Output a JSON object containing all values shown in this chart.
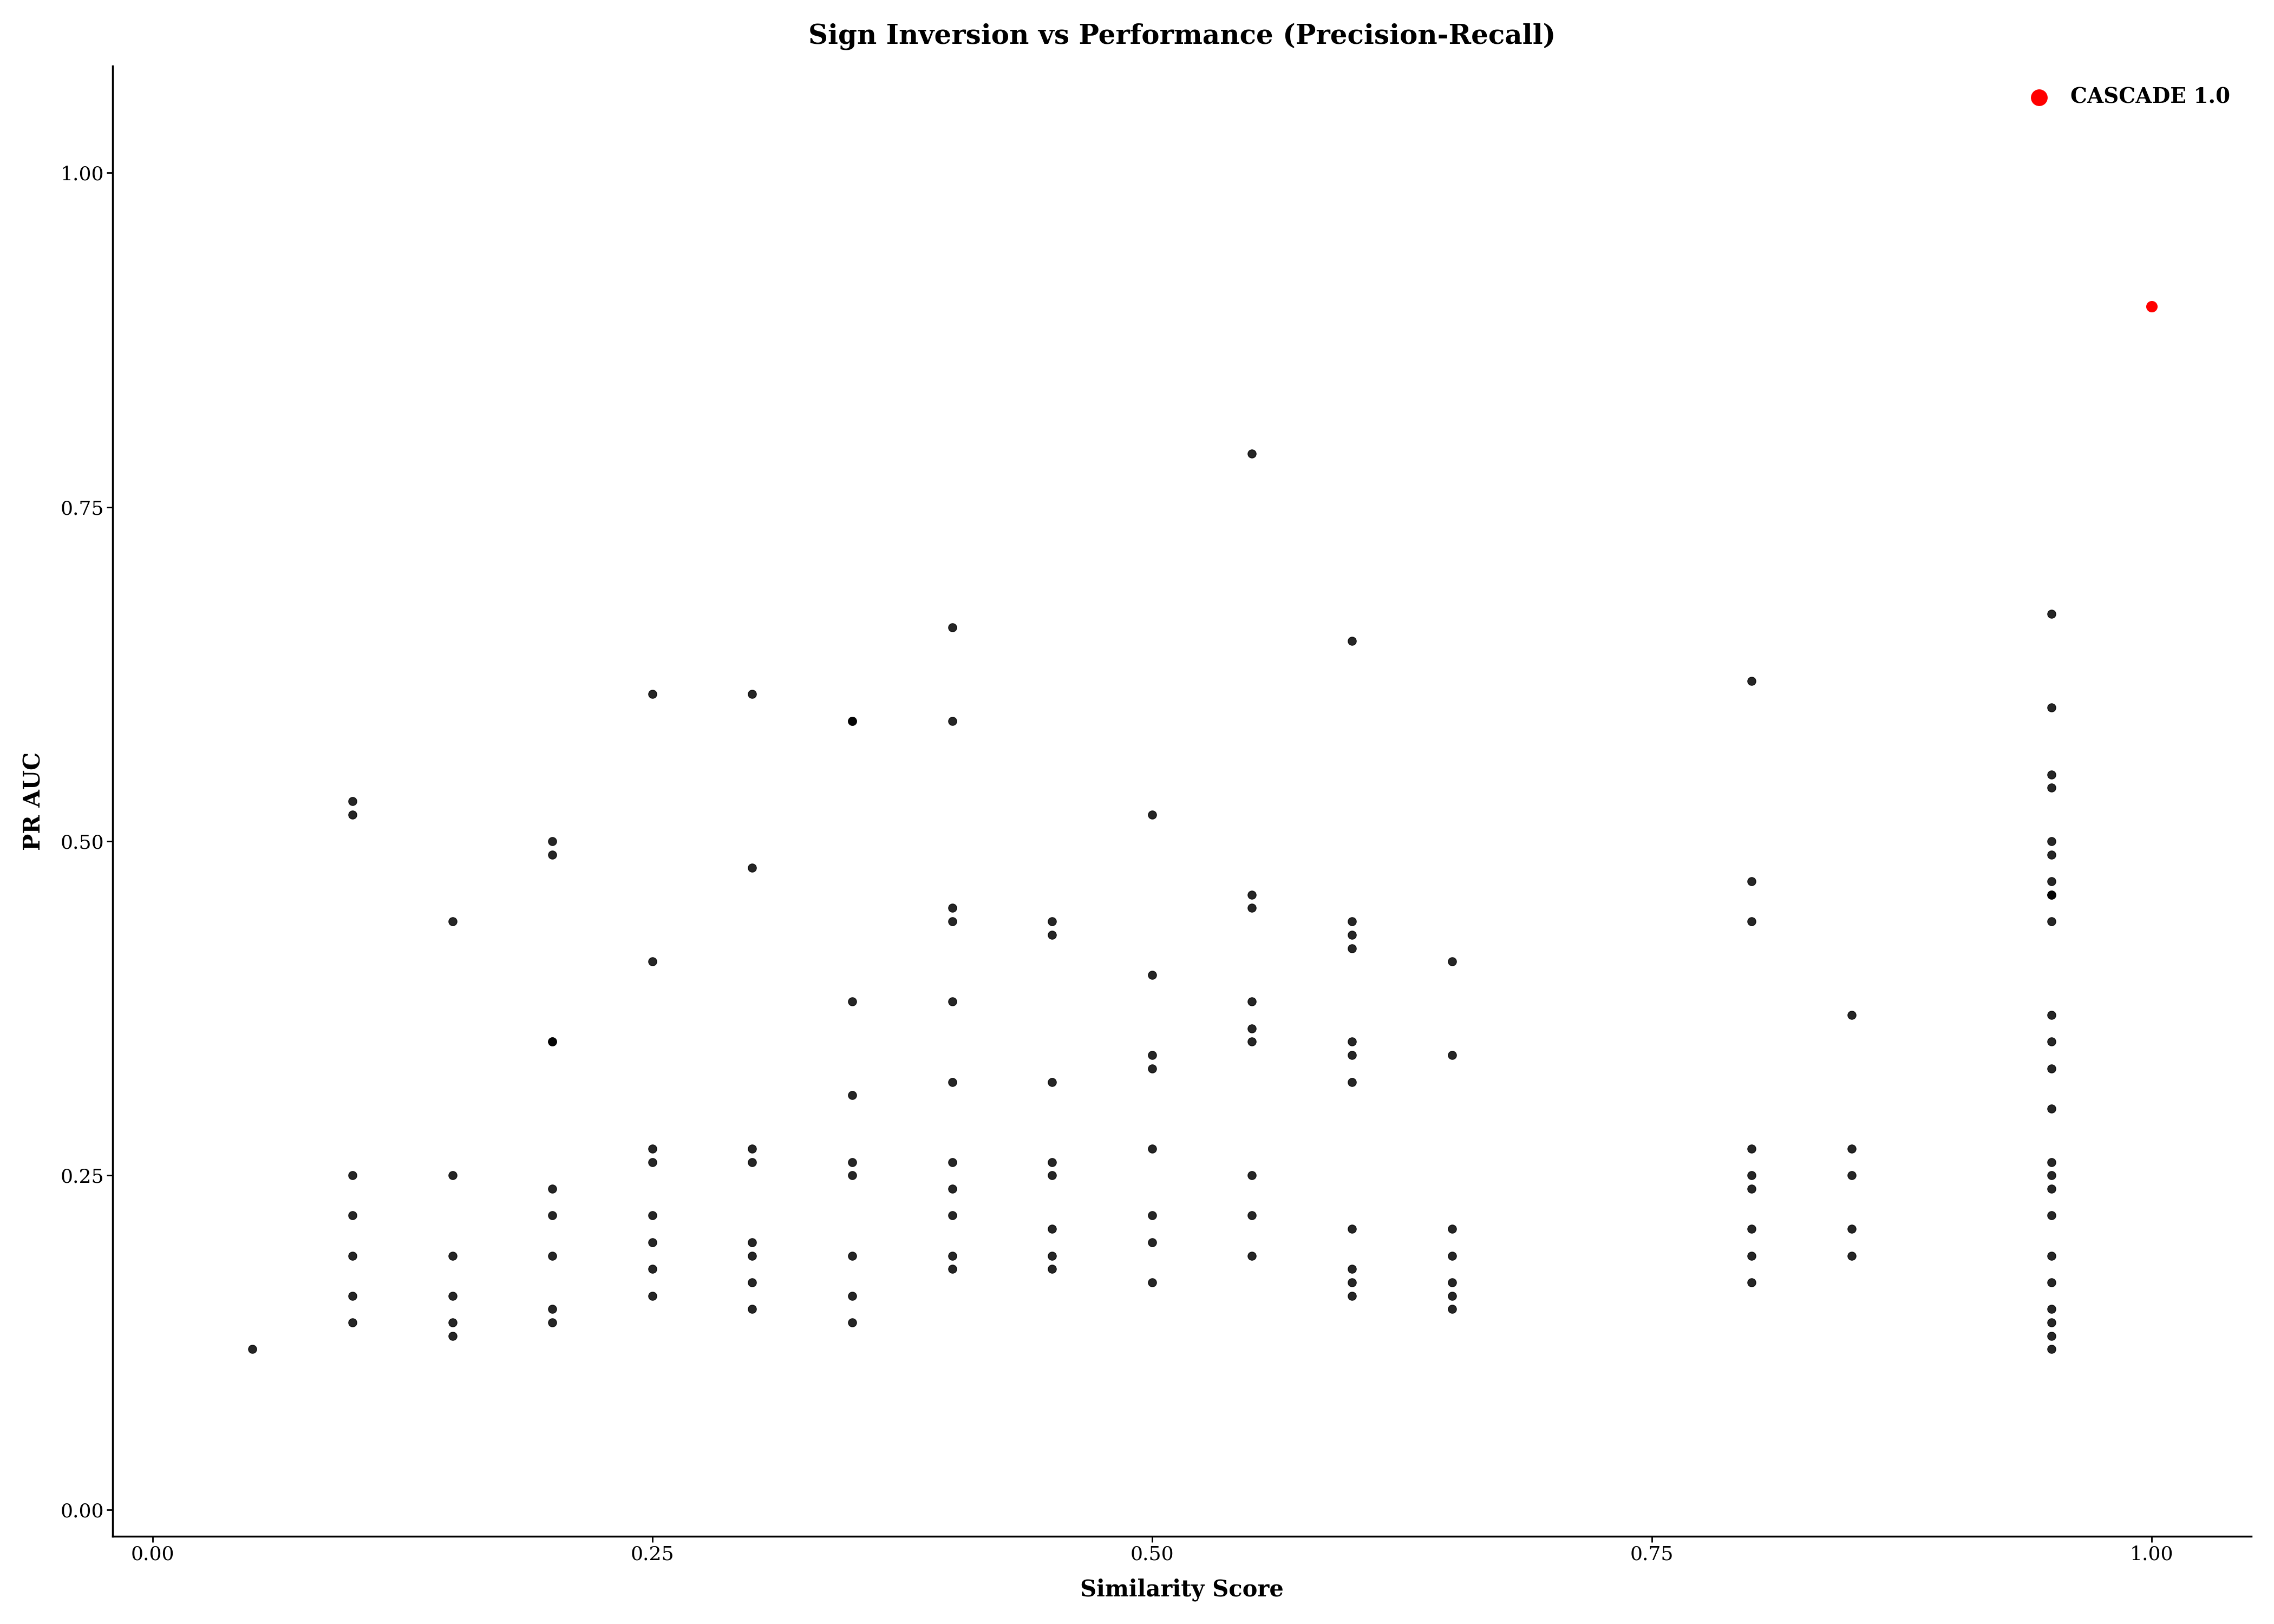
{
  "title": "Sign Inversion vs Performance (Precision-Recall)",
  "xlabel": "Similarity Score",
  "ylabel": "PR AUC",
  "xlim": [
    -0.02,
    1.05
  ],
  "ylim": [
    -0.02,
    1.08
  ],
  "xticks": [
    0.0,
    0.25,
    0.5,
    0.75,
    1.0
  ],
  "yticks": [
    0.0,
    0.25,
    0.5,
    0.75,
    1.0
  ],
  "background_color": "#ffffff",
  "title_fontsize": 36,
  "axis_label_fontsize": 30,
  "tick_fontsize": 26,
  "legend_fontsize": 28,
  "scatter_black": [
    [
      0.05,
      0.12
    ],
    [
      0.1,
      0.52
    ],
    [
      0.1,
      0.53
    ],
    [
      0.1,
      0.25
    ],
    [
      0.1,
      0.22
    ],
    [
      0.1,
      0.19
    ],
    [
      0.1,
      0.16
    ],
    [
      0.1,
      0.14
    ],
    [
      0.15,
      0.44
    ],
    [
      0.15,
      0.25
    ],
    [
      0.15,
      0.19
    ],
    [
      0.15,
      0.16
    ],
    [
      0.15,
      0.14
    ],
    [
      0.15,
      0.13
    ],
    [
      0.2,
      0.5
    ],
    [
      0.2,
      0.49
    ],
    [
      0.2,
      0.35
    ],
    [
      0.2,
      0.35
    ],
    [
      0.2,
      0.24
    ],
    [
      0.2,
      0.22
    ],
    [
      0.2,
      0.19
    ],
    [
      0.2,
      0.15
    ],
    [
      0.2,
      0.14
    ],
    [
      0.25,
      0.61
    ],
    [
      0.25,
      0.41
    ],
    [
      0.25,
      0.27
    ],
    [
      0.25,
      0.26
    ],
    [
      0.25,
      0.22
    ],
    [
      0.25,
      0.2
    ],
    [
      0.25,
      0.18
    ],
    [
      0.25,
      0.16
    ],
    [
      0.3,
      0.61
    ],
    [
      0.3,
      0.48
    ],
    [
      0.3,
      0.27
    ],
    [
      0.3,
      0.26
    ],
    [
      0.3,
      0.2
    ],
    [
      0.3,
      0.19
    ],
    [
      0.3,
      0.17
    ],
    [
      0.3,
      0.15
    ],
    [
      0.35,
      0.59
    ],
    [
      0.35,
      0.59
    ],
    [
      0.35,
      0.38
    ],
    [
      0.35,
      0.31
    ],
    [
      0.35,
      0.26
    ],
    [
      0.35,
      0.25
    ],
    [
      0.35,
      0.19
    ],
    [
      0.35,
      0.16
    ],
    [
      0.35,
      0.14
    ],
    [
      0.4,
      0.66
    ],
    [
      0.4,
      0.59
    ],
    [
      0.4,
      0.45
    ],
    [
      0.4,
      0.44
    ],
    [
      0.4,
      0.38
    ],
    [
      0.4,
      0.32
    ],
    [
      0.4,
      0.26
    ],
    [
      0.4,
      0.24
    ],
    [
      0.4,
      0.22
    ],
    [
      0.4,
      0.19
    ],
    [
      0.4,
      0.18
    ],
    [
      0.45,
      0.44
    ],
    [
      0.45,
      0.43
    ],
    [
      0.45,
      0.32
    ],
    [
      0.45,
      0.26
    ],
    [
      0.45,
      0.25
    ],
    [
      0.45,
      0.21
    ],
    [
      0.45,
      0.19
    ],
    [
      0.45,
      0.18
    ],
    [
      0.5,
      0.52
    ],
    [
      0.5,
      0.4
    ],
    [
      0.5,
      0.34
    ],
    [
      0.5,
      0.33
    ],
    [
      0.5,
      0.27
    ],
    [
      0.5,
      0.22
    ],
    [
      0.5,
      0.2
    ],
    [
      0.5,
      0.17
    ],
    [
      0.55,
      0.79
    ],
    [
      0.55,
      0.46
    ],
    [
      0.55,
      0.45
    ],
    [
      0.55,
      0.38
    ],
    [
      0.55,
      0.36
    ],
    [
      0.55,
      0.35
    ],
    [
      0.55,
      0.25
    ],
    [
      0.55,
      0.22
    ],
    [
      0.55,
      0.19
    ],
    [
      0.6,
      0.65
    ],
    [
      0.6,
      0.44
    ],
    [
      0.6,
      0.43
    ],
    [
      0.6,
      0.42
    ],
    [
      0.6,
      0.35
    ],
    [
      0.6,
      0.34
    ],
    [
      0.6,
      0.32
    ],
    [
      0.6,
      0.21
    ],
    [
      0.6,
      0.18
    ],
    [
      0.6,
      0.17
    ],
    [
      0.6,
      0.16
    ],
    [
      0.65,
      0.41
    ],
    [
      0.65,
      0.34
    ],
    [
      0.65,
      0.21
    ],
    [
      0.65,
      0.19
    ],
    [
      0.65,
      0.17
    ],
    [
      0.65,
      0.16
    ],
    [
      0.65,
      0.15
    ],
    [
      0.8,
      0.62
    ],
    [
      0.8,
      0.47
    ],
    [
      0.8,
      0.44
    ],
    [
      0.8,
      0.27
    ],
    [
      0.8,
      0.25
    ],
    [
      0.8,
      0.24
    ],
    [
      0.8,
      0.21
    ],
    [
      0.8,
      0.19
    ],
    [
      0.8,
      0.17
    ],
    [
      0.85,
      0.37
    ],
    [
      0.85,
      0.27
    ],
    [
      0.85,
      0.25
    ],
    [
      0.85,
      0.21
    ],
    [
      0.85,
      0.19
    ],
    [
      0.95,
      0.67
    ],
    [
      0.95,
      0.6
    ],
    [
      0.95,
      0.55
    ],
    [
      0.95,
      0.54
    ],
    [
      0.95,
      0.5
    ],
    [
      0.95,
      0.49
    ],
    [
      0.95,
      0.47
    ],
    [
      0.95,
      0.46
    ],
    [
      0.95,
      0.46
    ],
    [
      0.95,
      0.44
    ],
    [
      0.95,
      0.37
    ],
    [
      0.95,
      0.35
    ],
    [
      0.95,
      0.33
    ],
    [
      0.95,
      0.3
    ],
    [
      0.95,
      0.26
    ],
    [
      0.95,
      0.25
    ],
    [
      0.95,
      0.24
    ],
    [
      0.95,
      0.22
    ],
    [
      0.95,
      0.19
    ],
    [
      0.95,
      0.17
    ],
    [
      0.95,
      0.15
    ],
    [
      0.95,
      0.14
    ],
    [
      0.95,
      0.13
    ],
    [
      0.95,
      0.12
    ]
  ],
  "cascade_point": [
    1.0,
    0.9
  ],
  "cascade_color": "#ff0000",
  "cascade_label": "CASCADE 1.0",
  "scatter_size": 120,
  "cascade_size": 200,
  "scatter_color": "#000000",
  "dot_alpha": 0.85
}
